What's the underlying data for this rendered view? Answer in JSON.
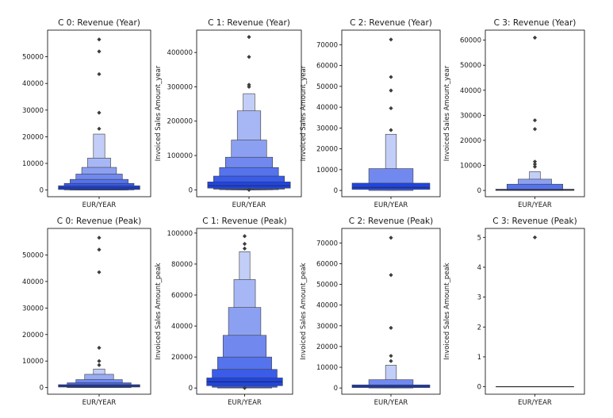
{
  "figure_colors": {
    "box_darkest": "#1f45e6",
    "box_light": "#dfe6fb",
    "outlier": "#3d3d3d",
    "frame": "#000000"
  },
  "chart_data": [
    {
      "type": "boxen",
      "title": "C 0: Revenue (Year)",
      "ylabel": "",
      "categories": [
        "EUR/YEAR"
      ],
      "ylim": [
        -2500,
        60000
      ],
      "yticks": [
        0,
        10000,
        20000,
        30000,
        40000,
        50000
      ],
      "tick_labels": [
        "0",
        "10000",
        "20000",
        "30000",
        "40000",
        "50000"
      ],
      "median": 800,
      "levels": [
        [
          200,
          1600
        ],
        [
          50,
          2500
        ],
        [
          0,
          4000
        ],
        [
          0,
          6000
        ],
        [
          0,
          8500
        ],
        [
          0,
          12000
        ],
        [
          0,
          21000
        ]
      ],
      "outliers": [
        23000,
        29000,
        43500,
        52000,
        56500
      ]
    },
    {
      "type": "boxen",
      "title": "C 1: Revenue (Year)",
      "ylabel": "Invoiced Sales Amount_year",
      "categories": [
        "EUR/YEAR"
      ],
      "ylim": [
        -20000,
        465000
      ],
      "yticks": [
        0,
        100000,
        200000,
        300000,
        400000
      ],
      "tick_labels": [
        "0",
        "100000",
        "200000",
        "300000",
        "400000"
      ],
      "median": 12000,
      "levels": [
        [
          5000,
          23000
        ],
        [
          2000,
          40000
        ],
        [
          500,
          65000
        ],
        [
          0,
          95000
        ],
        [
          0,
          145000
        ],
        [
          0,
          230000
        ],
        [
          0,
          280000
        ]
      ],
      "outliers": [
        300000,
        306000,
        387000,
        445000,
        0
      ]
    },
    {
      "type": "boxen",
      "title": "C 2: Revenue (Year)",
      "ylabel": "Invoiced Sales Amount_year",
      "categories": [
        "EUR/YEAR"
      ],
      "ylim": [
        -3000,
        77000
      ],
      "yticks": [
        0,
        10000,
        20000,
        30000,
        40000,
        50000,
        60000,
        70000
      ],
      "tick_labels": [
        "0",
        "10000",
        "20000",
        "30000",
        "40000",
        "50000",
        "60000",
        "70000"
      ],
      "median": 1500,
      "levels": [
        [
          500,
          3500
        ],
        [
          0,
          10500
        ],
        [
          0,
          27000
        ]
      ],
      "outliers": [
        29000,
        39500,
        48000,
        54500,
        72500
      ]
    },
    {
      "type": "boxen",
      "title": "C 3: Revenue (Year)",
      "ylabel": "Invoiced Sales Amount_year",
      "categories": [
        "EUR/YEAR"
      ],
      "ylim": [
        -2500,
        64000
      ],
      "yticks": [
        0,
        10000,
        20000,
        30000,
        40000,
        50000,
        60000
      ],
      "tick_labels": [
        "0",
        "10000",
        "20000",
        "30000",
        "40000",
        "50000",
        "60000"
      ],
      "median": 200,
      "levels": [
        [
          0,
          500
        ],
        [
          0,
          2500
        ],
        [
          0,
          4500
        ],
        [
          0,
          7500
        ]
      ],
      "outliers": [
        9500,
        10500,
        11500,
        24500,
        28000,
        61000
      ]
    },
    {
      "type": "boxen",
      "title": "C 0: Revenue (Peak)",
      "ylabel": "",
      "categories": [
        "EUR/YEAR"
      ],
      "ylim": [
        -2500,
        60000
      ],
      "yticks": [
        0,
        10000,
        20000,
        30000,
        40000,
        50000
      ],
      "tick_labels": [
        "0",
        "10000",
        "20000",
        "30000",
        "40000",
        "50000"
      ],
      "median": 600,
      "levels": [
        [
          200,
          1100
        ],
        [
          0,
          1800
        ],
        [
          0,
          3000
        ],
        [
          0,
          5000
        ],
        [
          0,
          7000
        ]
      ],
      "outliers": [
        8500,
        10000,
        15000,
        43500,
        52000,
        56500
      ]
    },
    {
      "type": "boxen",
      "title": "C 1: Revenue (Peak)",
      "ylabel": "Invoiced Sales Amount_peak",
      "categories": [
        "EUR/YEAR"
      ],
      "ylim": [
        -4000,
        103000
      ],
      "yticks": [
        0,
        20000,
        40000,
        60000,
        80000,
        100000
      ],
      "tick_labels": [
        "0",
        "20000",
        "40000",
        "60000",
        "80000",
        "100000"
      ],
      "median": 4000,
      "levels": [
        [
          1500,
          6500
        ],
        [
          500,
          12000
        ],
        [
          0,
          20000
        ],
        [
          0,
          34000
        ],
        [
          0,
          52000
        ],
        [
          0,
          70000
        ],
        [
          0,
          88000
        ]
      ],
      "outliers": [
        90000,
        93000,
        98000,
        0
      ]
    },
    {
      "type": "boxen",
      "title": "C 2: Revenue (Peak)",
      "ylabel": "Invoiced Sales Amount_peak",
      "categories": [
        "EUR/YEAR"
      ],
      "ylim": [
        -3000,
        77000
      ],
      "yticks": [
        0,
        10000,
        20000,
        30000,
        40000,
        50000,
        60000,
        70000
      ],
      "tick_labels": [
        "0",
        "10000",
        "20000",
        "30000",
        "40000",
        "50000",
        "60000",
        "70000"
      ],
      "median": 800,
      "levels": [
        [
          200,
          1500
        ],
        [
          0,
          4000
        ],
        [
          0,
          11000
        ]
      ],
      "outliers": [
        13000,
        15500,
        29000,
        54500,
        72500
      ]
    },
    {
      "type": "boxen",
      "title": "C 3: Revenue (Peak)",
      "ylabel": "Invoiced Sales Amount_peak",
      "categories": [
        "EUR/YEAR"
      ],
      "ylim": [
        -0.25,
        5.3
      ],
      "yticks": [
        0,
        1,
        2,
        3,
        4,
        5
      ],
      "tick_labels": [
        "0",
        "1",
        "2",
        "3",
        "4",
        "5"
      ],
      "median": 0,
      "levels": [],
      "outliers": [
        5
      ]
    }
  ]
}
